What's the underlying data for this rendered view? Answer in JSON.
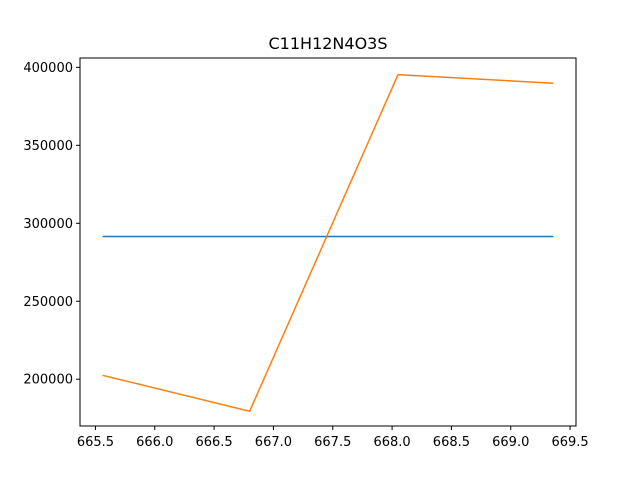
{
  "chart_data": {
    "type": "line",
    "title": "C11H12N4O3S",
    "xlabel": "",
    "ylabel": "",
    "xlim": [
      665.37,
      669.55
    ],
    "ylim": [
      170000,
      406000
    ],
    "grid": false,
    "x_ticks": [
      665.5,
      666.0,
      666.5,
      667.0,
      667.5,
      668.0,
      668.5,
      669.0,
      669.5
    ],
    "x_tick_labels": [
      "665.5",
      "666.0",
      "666.5",
      "667.0",
      "667.5",
      "668.0",
      "668.5",
      "669.0",
      "669.5"
    ],
    "y_ticks": [
      200000,
      250000,
      300000,
      350000,
      400000
    ],
    "y_tick_labels": [
      "200000",
      "250000",
      "300000",
      "350000",
      "400000"
    ],
    "series": [
      {
        "color": "#1f77b4",
        "x": [
          665.56,
          669.36
        ],
        "y": [
          291500,
          291500
        ]
      },
      {
        "color": "#ff7f0e",
        "x": [
          665.56,
          666.8,
          668.05,
          669.36
        ],
        "y": [
          202500,
          179500,
          395300,
          389800
        ]
      }
    ]
  }
}
